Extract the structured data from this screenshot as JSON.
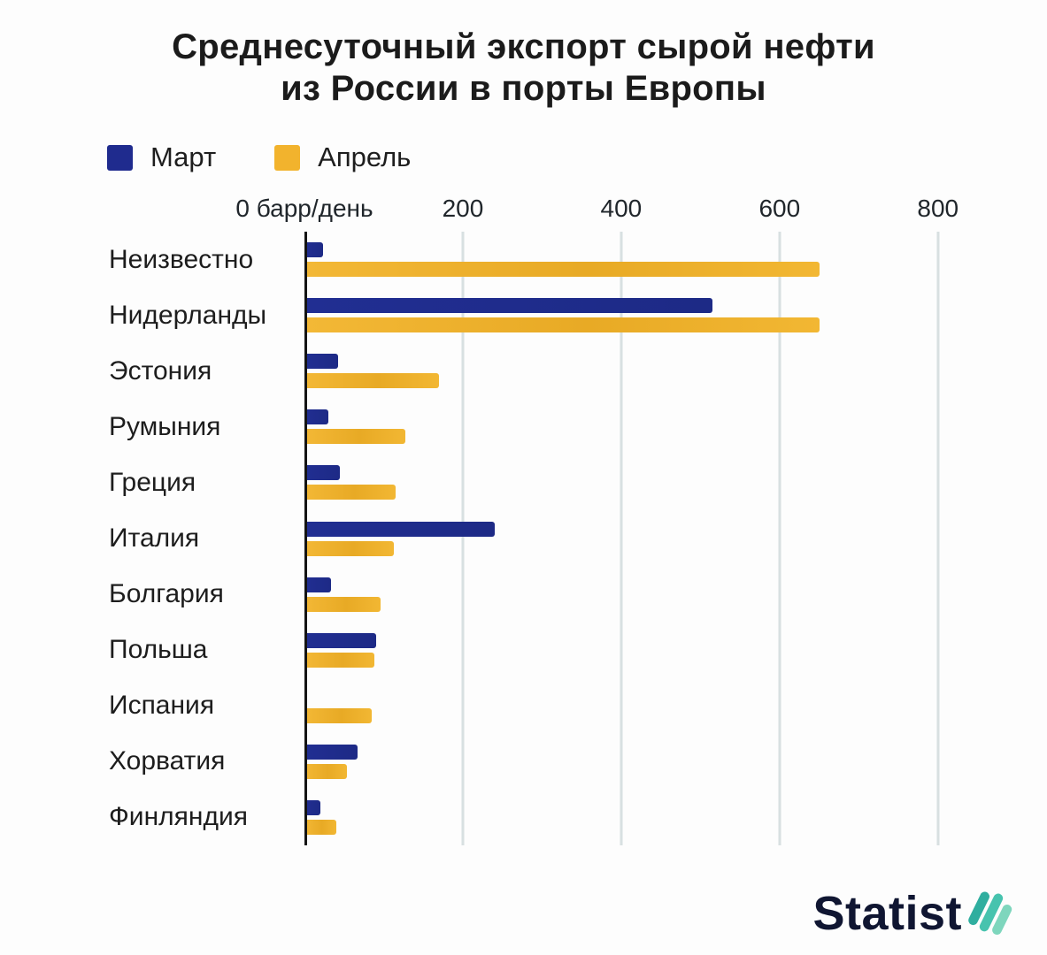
{
  "title": {
    "line1": "Среднесуточный экспорт сырой нефти",
    "line2": "из России в порты Европы"
  },
  "axis": {
    "zero_label": "0 барр/день",
    "ticks": [
      200,
      400,
      600,
      800
    ],
    "xmax": 845
  },
  "colors": {
    "march": "#1f2b8e",
    "april": "#f2b32d",
    "grid": "#d8e0e1",
    "axis": "#141414",
    "logo_navy": "#101632",
    "leaf1": "#2fae9f",
    "leaf2": "#47c3ae",
    "leaf3": "#7ed6bd"
  },
  "chart_data": {
    "type": "bar",
    "orientation": "horizontal",
    "title": "Среднесуточный экспорт сырой нефти из России в порты Европы",
    "xlabel": "барр/день",
    "xlim": [
      0,
      800
    ],
    "grid": true,
    "legend_position": "top-left",
    "categories": [
      "Неизвестно",
      "Нидерланды",
      "Эстония",
      "Румыния",
      "Греция",
      "Италия",
      "Болгария",
      "Польша",
      "Испания",
      "Хорватия",
      "Финляндия"
    ],
    "series": [
      {
        "name": "Март",
        "color": "#1f2b8e",
        "values": [
          23,
          515,
          42,
          30,
          45,
          240,
          33,
          90,
          0,
          67,
          20
        ]
      },
      {
        "name": "Апрель",
        "color": "#f2b32d",
        "values": [
          650,
          650,
          170,
          127,
          115,
          113,
          96,
          88,
          85,
          54,
          40
        ]
      }
    ]
  },
  "branding": {
    "logo_text": "Statist"
  }
}
